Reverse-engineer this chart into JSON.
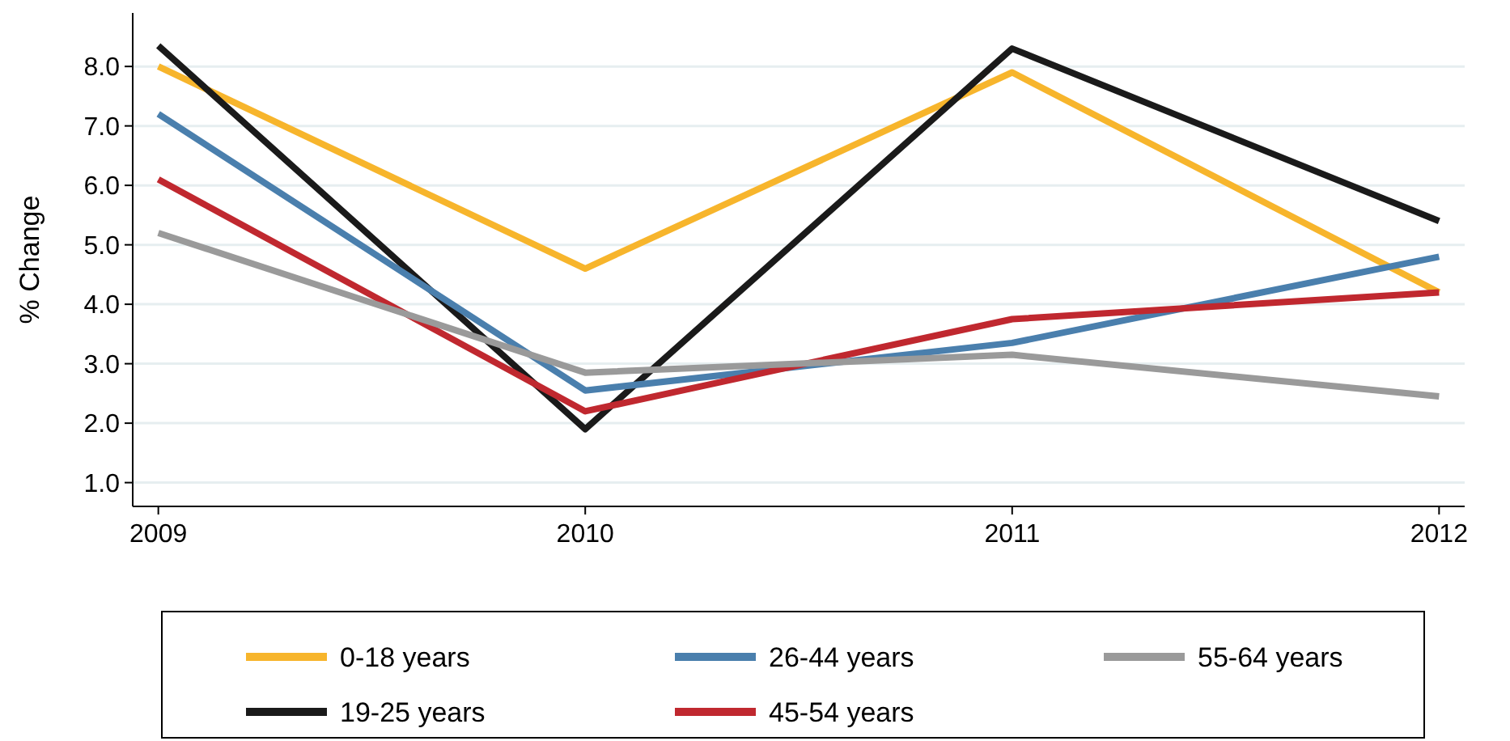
{
  "chart_data": {
    "type": "line",
    "ylabel": "% Change",
    "x": [
      2009,
      2010,
      2011,
      2012
    ],
    "xlim": [
      2008.94,
      2012.06
    ],
    "xticks": [
      2009,
      2010,
      2011,
      2012
    ],
    "ylim": [
      0.6,
      8.9
    ],
    "yticks": [
      {
        "value": 1,
        "label": "1.0"
      },
      {
        "value": 2,
        "label": "2.0"
      },
      {
        "value": 3,
        "label": "3.0"
      },
      {
        "value": 4,
        "label": "4.0"
      },
      {
        "value": 5,
        "label": "5.0"
      },
      {
        "value": 6,
        "label": "6.0"
      },
      {
        "value": 7,
        "label": "7.0"
      },
      {
        "value": 8,
        "label": "8.0"
      }
    ],
    "grid": "y",
    "legend": "bottom",
    "marker": "none",
    "line_style": "solid",
    "series": [
      {
        "name": "0-18 years",
        "color": "#f7b52c",
        "values": [
          8.0,
          4.6,
          7.9,
          4.2
        ]
      },
      {
        "name": "19-25 years",
        "color": "#1a1a1a",
        "values": [
          8.35,
          1.9,
          8.3,
          5.4
        ]
      },
      {
        "name": "26-44 years",
        "color": "#4a7fad",
        "values": [
          7.2,
          2.55,
          3.35,
          4.8
        ]
      },
      {
        "name": "45-54 years",
        "color": "#c0282f",
        "values": [
          6.1,
          2.2,
          3.75,
          4.2
        ]
      },
      {
        "name": "55-64 years",
        "color": "#9a9a9a",
        "values": [
          5.2,
          2.85,
          3.15,
          2.45
        ]
      }
    ]
  }
}
